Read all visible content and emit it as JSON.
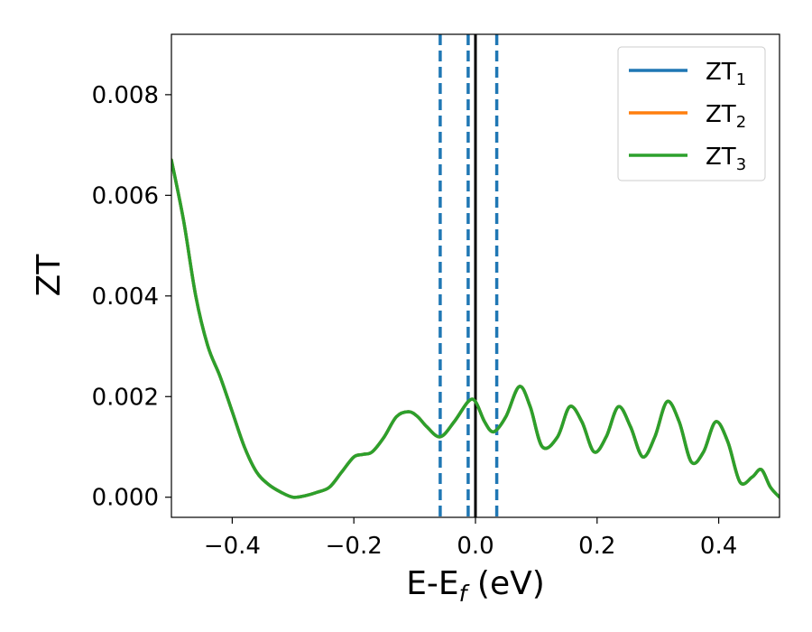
{
  "chart_data": {
    "type": "line",
    "xlabel": "E-E",
    "xlabel_sub": "f",
    "xlabel_unit": " (eV)",
    "ylabel": "ZT",
    "xlim": [
      -0.5,
      0.5
    ],
    "ylim": [
      -0.0004,
      0.0092
    ],
    "xticks": [
      -0.4,
      -0.2,
      0.0,
      0.2,
      0.4
    ],
    "xtick_labels": [
      "−0.4",
      "−0.2",
      "0.0",
      "0.2",
      "0.4"
    ],
    "yticks": [
      0.0,
      0.002,
      0.004,
      0.006,
      0.008
    ],
    "ytick_labels": [
      "0.000",
      "0.002",
      "0.004",
      "0.006",
      "0.008"
    ],
    "legend_position": "top-right",
    "x": [
      -0.5,
      -0.48,
      -0.46,
      -0.44,
      -0.42,
      -0.4,
      -0.38,
      -0.36,
      -0.34,
      -0.32,
      -0.3,
      -0.28,
      -0.26,
      -0.24,
      -0.22,
      -0.2,
      -0.185,
      -0.17,
      -0.15,
      -0.13,
      -0.11,
      -0.095,
      -0.08,
      -0.058,
      -0.035,
      -0.012,
      0.0,
      0.015,
      0.03,
      0.05,
      0.072,
      0.09,
      0.11,
      0.135,
      0.155,
      0.175,
      0.195,
      0.215,
      0.235,
      0.255,
      0.275,
      0.295,
      0.315,
      0.335,
      0.355,
      0.375,
      0.395,
      0.415,
      0.435,
      0.455,
      0.47,
      0.485,
      0.5
    ],
    "series": [
      {
        "name_main": "ZT",
        "name_sub": "1",
        "color": "#1f77b4",
        "values": [
          0.0067,
          0.0055,
          0.004,
          0.003,
          0.0024,
          0.0017,
          0.001,
          0.0005,
          0.00025,
          0.0001,
          0.0,
          3e-05,
          0.0001,
          0.0002,
          0.0005,
          0.0008,
          0.00085,
          0.0009,
          0.0012,
          0.0016,
          0.0017,
          0.0016,
          0.0014,
          0.0012,
          0.0015,
          0.0019,
          0.0019,
          0.0015,
          0.0013,
          0.0016,
          0.0022,
          0.0018,
          0.001,
          0.0012,
          0.0018,
          0.0015,
          0.0009,
          0.0012,
          0.0018,
          0.0014,
          0.0008,
          0.0012,
          0.0019,
          0.0015,
          0.0007,
          0.0009,
          0.0015,
          0.0011,
          0.0003,
          0.0004,
          0.00055,
          0.0002,
          0.0
        ]
      },
      {
        "name_main": "ZT",
        "name_sub": "2",
        "color": "#ff7f0e",
        "values": [
          0.0067,
          0.0055,
          0.004,
          0.003,
          0.0024,
          0.0017,
          0.001,
          0.0005,
          0.00025,
          0.0001,
          0.0,
          3e-05,
          0.0001,
          0.0002,
          0.0005,
          0.0008,
          0.00085,
          0.0009,
          0.0012,
          0.0016,
          0.0017,
          0.0016,
          0.0014,
          0.0012,
          0.0015,
          0.0019,
          0.0019,
          0.0015,
          0.0013,
          0.0016,
          0.0022,
          0.0018,
          0.001,
          0.0012,
          0.0018,
          0.0015,
          0.0009,
          0.0012,
          0.0018,
          0.0014,
          0.0008,
          0.0012,
          0.0019,
          0.0015,
          0.0007,
          0.0009,
          0.0015,
          0.0011,
          0.0003,
          0.0004,
          0.00055,
          0.0002,
          0.0
        ]
      },
      {
        "name_main": "ZT",
        "name_sub": "3",
        "color": "#2ca02c",
        "values": [
          0.0067,
          0.0055,
          0.004,
          0.003,
          0.0024,
          0.0017,
          0.001,
          0.0005,
          0.00025,
          0.0001,
          0.0,
          3e-05,
          0.0001,
          0.0002,
          0.0005,
          0.0008,
          0.00085,
          0.0009,
          0.0012,
          0.0016,
          0.0017,
          0.0016,
          0.0014,
          0.0012,
          0.0015,
          0.0019,
          0.0019,
          0.0015,
          0.0013,
          0.0016,
          0.0022,
          0.0018,
          0.001,
          0.0012,
          0.0018,
          0.0015,
          0.0009,
          0.0012,
          0.0018,
          0.0014,
          0.0008,
          0.0012,
          0.0019,
          0.0015,
          0.0007,
          0.0009,
          0.0015,
          0.0011,
          0.0003,
          0.0004,
          0.00055,
          0.0002,
          0.0
        ]
      }
    ],
    "vlines": [
      {
        "x": -0.058,
        "style": "dashed",
        "color": "#1f77b4"
      },
      {
        "x": -0.012,
        "style": "dashed",
        "color": "#1f77b4"
      },
      {
        "x": 0.035,
        "style": "dashed",
        "color": "#1f77b4"
      },
      {
        "x": 0.0,
        "style": "solid",
        "color": "#000000"
      }
    ]
  }
}
